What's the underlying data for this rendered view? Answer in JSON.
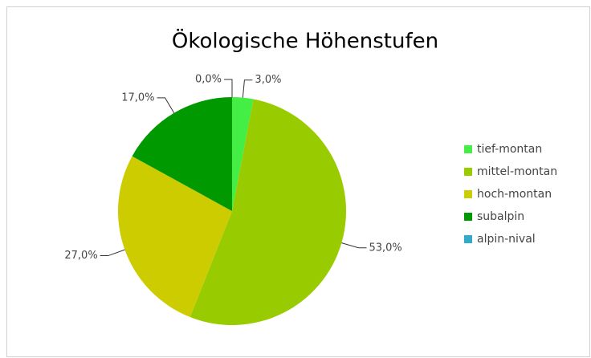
{
  "chart_data": {
    "type": "pie",
    "title": "Ökologische Höhenstufen",
    "categories": [
      "tief-montan",
      "mittel-montan",
      "hoch-montan",
      "subalpin",
      "alpin-nival"
    ],
    "values": [
      3,
      53,
      27,
      17,
      0
    ],
    "value_labels": [
      "3,0%",
      "53,0%",
      "27,0%",
      "17,0%",
      "0,0%"
    ],
    "colors": [
      "#44ee44",
      "#99cc00",
      "#cccc00",
      "#009900",
      "#33aacc"
    ],
    "legend": "right"
  }
}
